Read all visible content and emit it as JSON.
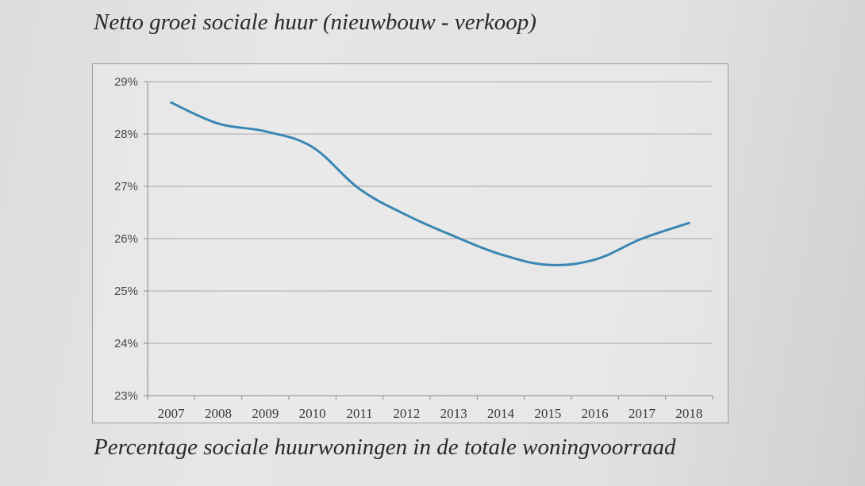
{
  "chart_data": {
    "type": "line",
    "title": "Netto groei sociale huur (nieuwbouw - verkoop)",
    "caption": "Percentage sociale huurwoningen in de totale woningvoorraad",
    "xlabel": "",
    "ylabel": "",
    "categories": [
      "2007",
      "2008",
      "2009",
      "2010",
      "2011",
      "2012",
      "2013",
      "2014",
      "2015",
      "2016",
      "2017",
      "2018"
    ],
    "series": [
      {
        "values": [
          28.6,
          28.2,
          28.05,
          27.75,
          26.95,
          26.45,
          26.05,
          25.7,
          25.5,
          25.6,
          26.0,
          26.3
        ]
      }
    ],
    "ylim": [
      23,
      29
    ],
    "yticks": [
      "23%",
      "24%",
      "25%",
      "26%",
      "27%",
      "28%",
      "29%"
    ],
    "grid": true,
    "legend": "none",
    "line_color": "#3a86b4"
  }
}
